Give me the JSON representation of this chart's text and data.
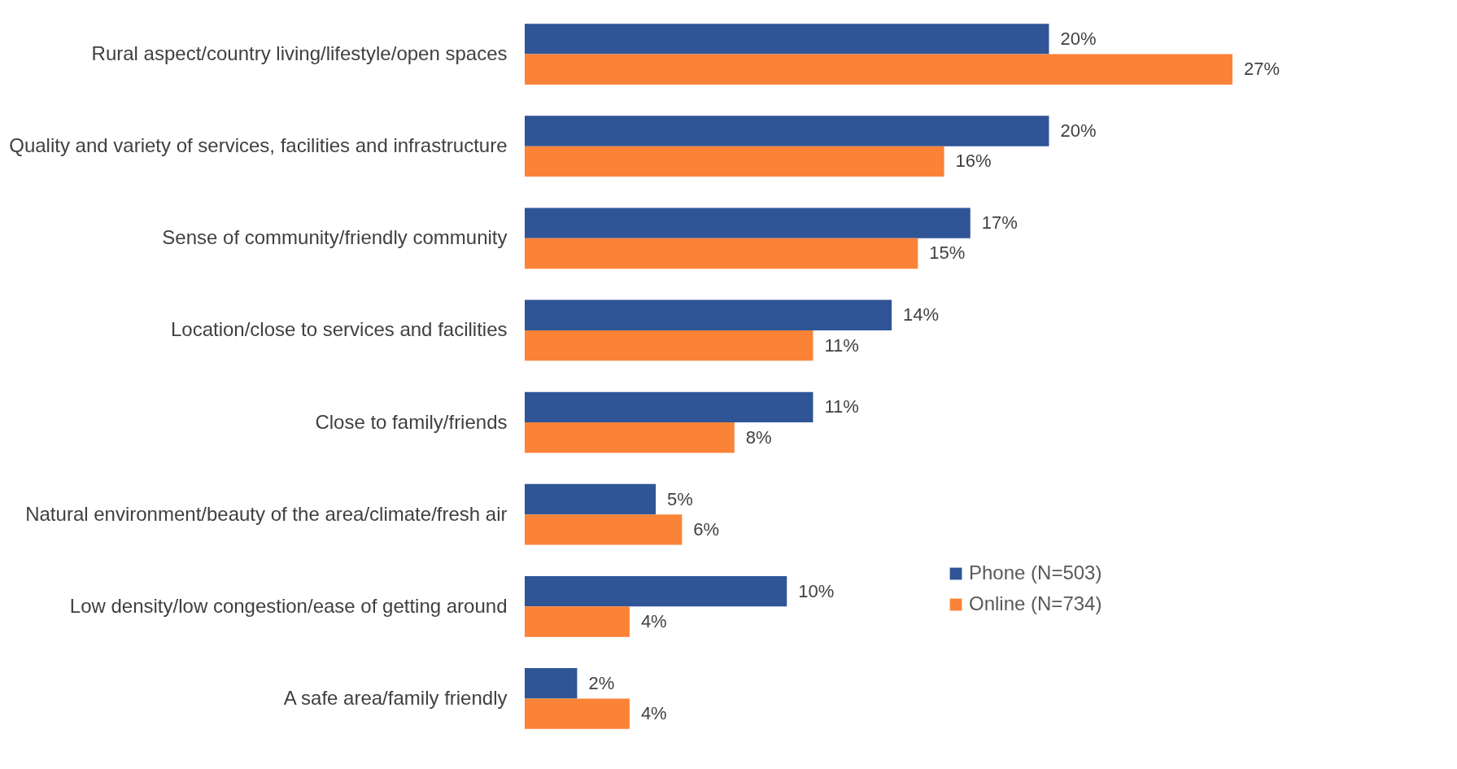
{
  "chart_data": {
    "type": "bar",
    "orientation": "horizontal",
    "legend": "bottom right",
    "grid": false,
    "categories": [
      "Rural aspect/country living/lifestyle/open spaces",
      "Quality and variety of services, facilities and infrastructure",
      "Sense of community/friendly community",
      "Location/close to services and facilities",
      "Close to family/friends",
      "Natural environment/beauty of the area/climate/fresh air",
      "Low density/low congestion/ease of getting around",
      "A safe area/family friendly"
    ],
    "series": [
      {
        "name": "Phone (N=503)",
        "color": "#2f5597",
        "values": [
          20,
          20,
          17,
          14,
          11,
          5,
          10,
          2
        ],
        "value_labels": [
          "20%",
          "20%",
          "17%",
          "14%",
          "11%",
          "5%",
          "10%",
          "2%"
        ]
      },
      {
        "name": "Online (N=734)",
        "color": "#fb8337",
        "values": [
          27,
          16,
          15,
          11,
          8,
          6,
          4,
          4
        ],
        "value_labels": [
          "27%",
          "16%",
          "15%",
          "11%",
          "8%",
          "6%",
          "4%",
          "4%"
        ]
      }
    ]
  }
}
